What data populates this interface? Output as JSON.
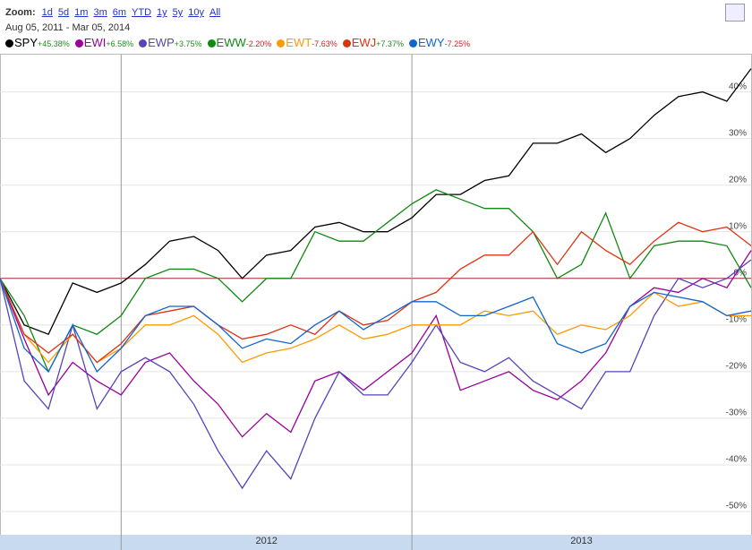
{
  "chart_data": {
    "type": "line",
    "zoom_label": "Zoom:",
    "zoom_options": [
      "1d",
      "5d",
      "1m",
      "3m",
      "6m",
      "YTD",
      "1y",
      "5y",
      "10y",
      "All"
    ],
    "date_from": "Aug 05, 2011",
    "date_sep": "-",
    "date_to": "Mar 05, 2014",
    "categories": [
      null,
      null,
      null,
      null,
      null,
      "2012",
      null,
      null,
      null,
      null,
      null,
      null,
      null,
      null,
      null,
      null,
      null,
      "2013",
      null,
      null,
      null,
      null,
      null,
      null,
      null,
      null,
      null,
      null,
      null,
      null,
      null,
      null
    ],
    "ylim": [
      -55,
      48
    ],
    "yticks": [
      {
        "value": 40,
        "label": "40%"
      },
      {
        "value": 30,
        "label": "30%"
      },
      {
        "value": 20,
        "label": "20%"
      },
      {
        "value": 10,
        "label": "10%"
      },
      {
        "value": 0,
        "label": "0%"
      },
      {
        "value": -10,
        "label": "-10%"
      },
      {
        "value": -20,
        "label": "-20%"
      },
      {
        "value": -30,
        "label": "-30%"
      },
      {
        "value": -40,
        "label": "-40%"
      },
      {
        "value": -50,
        "label": "-50%"
      }
    ],
    "grid": true,
    "series": [
      {
        "name": "SPY",
        "change": "+45.38%",
        "color": "#000000",
        "values": [
          0,
          -10,
          -12,
          -1,
          -3,
          -1,
          3,
          8,
          9,
          6,
          0,
          5,
          6,
          11,
          12,
          10,
          10,
          13,
          18,
          18,
          21,
          22,
          29,
          29,
          31,
          27,
          30,
          35,
          39,
          40,
          38,
          45
        ]
      },
      {
        "name": "EWI",
        "change": "+6.58%",
        "color": "#990099",
        "values": [
          0,
          -13,
          -25,
          -18,
          -22,
          -25,
          -18,
          -16,
          -22,
          -27,
          -34,
          -29,
          -33,
          -22,
          -20,
          -24,
          -20,
          -16,
          -8,
          -24,
          -22,
          -20,
          -24,
          -26,
          -22,
          -16,
          -6,
          -2,
          -3,
          0,
          -2,
          6
        ]
      },
      {
        "name": "EWP",
        "change": "+3.75%",
        "color": "#5544bb",
        "values": [
          0,
          -22,
          -28,
          -10,
          -28,
          -20,
          -17,
          -20,
          -27,
          -37,
          -45,
          -37,
          -43,
          -30,
          -20,
          -25,
          -25,
          -18,
          -10,
          -18,
          -20,
          -17,
          -22,
          -25,
          -28,
          -20,
          -20,
          -8,
          0,
          -2,
          0,
          4
        ]
      },
      {
        "name": "EWW",
        "change": "-2.20%",
        "color": "#118811",
        "values": [
          0,
          -8,
          -20,
          -10,
          -12,
          -8,
          0,
          2,
          2,
          0,
          -5,
          0,
          0,
          10,
          8,
          8,
          12,
          16,
          19,
          17,
          15,
          15,
          10,
          0,
          3,
          14,
          0,
          7,
          8,
          8,
          7,
          -2
        ]
      },
      {
        "name": "EWT",
        "change": "-7.63%",
        "color": "#ff9900",
        "values": [
          0,
          -12,
          -18,
          -12,
          -18,
          -15,
          -10,
          -10,
          -8,
          -12,
          -18,
          -16,
          -15,
          -13,
          -10,
          -13,
          -12,
          -10,
          -10,
          -10,
          -7,
          -8,
          -7,
          -12,
          -10,
          -11,
          -8,
          -3,
          -6,
          -5,
          -8,
          -8
        ]
      },
      {
        "name": "EWJ",
        "change": "+7.37%",
        "color": "#dd3311",
        "values": [
          0,
          -12,
          -16,
          -12,
          -18,
          -14,
          -8,
          -7,
          -6,
          -10,
          -13,
          -12,
          -10,
          -12,
          -7,
          -10,
          -9,
          -5,
          -3,
          2,
          5,
          5,
          10,
          3,
          10,
          6,
          3,
          8,
          12,
          10,
          11,
          7
        ]
      },
      {
        "name": "EWY",
        "change": "-7.25%",
        "color": "#1166cc",
        "values": [
          0,
          -15,
          -20,
          -10,
          -20,
          -15,
          -8,
          -6,
          -6,
          -10,
          -15,
          -13,
          -14,
          -10,
          -7,
          -11,
          -8,
          -5,
          -5,
          -8,
          -8,
          -6,
          -4,
          -14,
          -16,
          -14,
          -6,
          -3,
          -4,
          -5,
          -8,
          -7
        ]
      }
    ]
  }
}
